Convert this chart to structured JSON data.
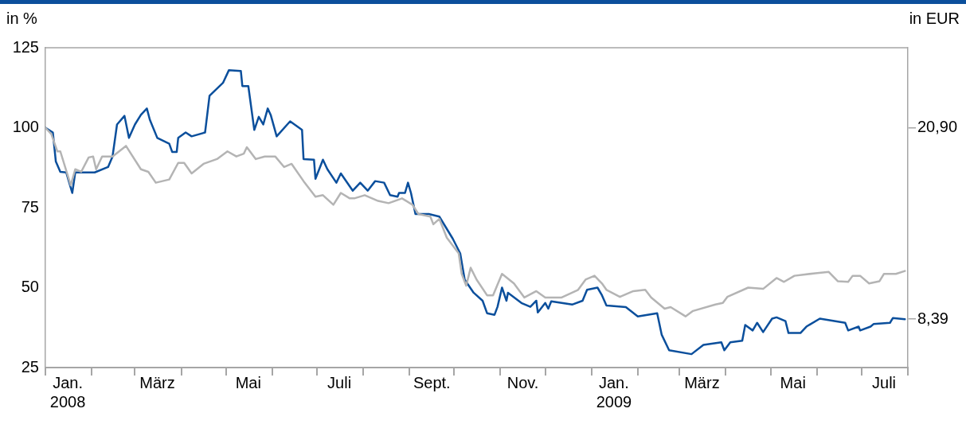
{
  "chart_data": {
    "type": "line",
    "ylabel": "in %",
    "y2label": "in EUR",
    "xlim": [
      "2008-01-01",
      "2009-08-01"
    ],
    "xticks": [
      {
        "value": "2008-01-01",
        "label": null
      },
      {
        "value": "2008-01-16",
        "label": "Jan.\n2008"
      },
      {
        "value": "2008-02-01",
        "label": null
      },
      {
        "value": "2008-03-01",
        "label": null
      },
      {
        "value": "2008-03-16",
        "label": "März"
      },
      {
        "value": "2008-04-01",
        "label": null
      },
      {
        "value": "2008-05-01",
        "label": null
      },
      {
        "value": "2008-05-16",
        "label": "Mai"
      },
      {
        "value": "2008-06-01",
        "label": null
      },
      {
        "value": "2008-07-01",
        "label": null
      },
      {
        "value": "2008-07-16",
        "label": "Juli"
      },
      {
        "value": "2008-08-01",
        "label": null
      },
      {
        "value": "2008-09-01",
        "label": null
      },
      {
        "value": "2008-09-16",
        "label": "Sept."
      },
      {
        "value": "2008-10-01",
        "label": null
      },
      {
        "value": "2008-11-01",
        "label": null
      },
      {
        "value": "2008-11-16",
        "label": "Nov."
      },
      {
        "value": "2008-12-01",
        "label": null
      },
      {
        "value": "2009-01-01",
        "label": null
      },
      {
        "value": "2009-01-16",
        "label": "Jan.\n2009"
      },
      {
        "value": "2009-02-01",
        "label": null
      },
      {
        "value": "2009-03-01",
        "label": null
      },
      {
        "value": "2009-03-16",
        "label": "März"
      },
      {
        "value": "2009-04-01",
        "label": null
      },
      {
        "value": "2009-05-01",
        "label": null
      },
      {
        "value": "2009-05-16",
        "label": "Mai"
      },
      {
        "value": "2009-06-01",
        "label": null
      },
      {
        "value": "2009-07-01",
        "label": null
      },
      {
        "value": "2009-07-16",
        "label": "Juli"
      },
      {
        "value": "2009-08-01",
        "label": null
      }
    ],
    "ylim": [
      25,
      125
    ],
    "yticks": [
      25,
      50,
      75,
      100,
      125
    ],
    "y2lim": [
      5.225,
      26.125
    ],
    "y2ticks": [
      {
        "value": 20.9,
        "label": "20,90"
      },
      {
        "value": 8.39,
        "label": "8,39"
      }
    ],
    "grid": false,
    "legend": false,
    "marker": "none",
    "line_style": "solid",
    "series": [
      {
        "color": "#b4b4b4",
        "x": [
          "2008-01-01",
          "2008-01-05",
          "2008-01-09",
          "2008-01-11",
          "2008-01-18",
          "2008-01-21",
          "2008-01-25",
          "2008-01-30",
          "2008-02-02",
          "2008-02-04",
          "2008-02-08",
          "2008-02-15",
          "2008-02-24",
          "2008-03-05",
          "2008-03-10",
          "2008-03-15",
          "2008-03-24",
          "2008-03-30",
          "2008-04-03",
          "2008-04-08",
          "2008-04-16",
          "2008-04-25",
          "2008-05-02",
          "2008-05-08",
          "2008-05-13",
          "2008-05-15",
          "2008-05-21",
          "2008-05-27",
          "2008-06-03",
          "2008-06-09",
          "2008-06-14",
          "2008-06-22",
          "2008-06-30",
          "2008-07-05",
          "2008-07-12",
          "2008-07-17",
          "2008-07-23",
          "2008-07-26",
          "2008-08-02",
          "2008-08-11",
          "2008-08-18",
          "2008-08-27",
          "2008-09-03",
          "2008-09-07",
          "2008-09-15",
          "2008-09-17",
          "2008-09-21",
          "2008-09-26",
          "2008-10-04",
          "2008-10-06",
          "2008-10-09",
          "2008-10-12",
          "2008-10-16",
          "2008-10-23",
          "2008-10-27",
          "2008-11-02",
          "2008-11-10",
          "2008-11-17",
          "2008-11-25",
          "2008-12-01",
          "2008-12-12",
          "2008-12-23",
          "2008-12-28",
          "2009-01-03",
          "2009-01-08",
          "2009-01-11",
          "2009-01-20",
          "2009-01-29",
          "2009-02-06",
          "2009-02-10",
          "2009-02-19",
          "2009-02-23",
          "2009-03-05",
          "2009-03-10",
          "2009-03-25",
          "2009-03-30",
          "2009-04-02",
          "2009-04-16",
          "2009-04-26",
          "2009-05-05",
          "2009-05-10",
          "2009-05-17",
          "2009-05-31",
          "2009-06-09",
          "2009-06-15",
          "2009-06-22",
          "2009-06-25",
          "2009-06-30",
          "2009-07-06",
          "2009-07-13",
          "2009-07-16",
          "2009-07-24",
          "2009-07-30"
        ],
        "values": [
          100,
          98,
          92.6,
          92.6,
          82,
          87,
          86.2,
          90.7,
          91,
          87,
          91,
          91,
          94.3,
          87,
          86.2,
          82.8,
          83.8,
          89,
          89,
          85.7,
          88.7,
          90.2,
          92.6,
          91,
          91.9,
          93.9,
          90.2,
          91,
          91,
          87.7,
          88.7,
          83.3,
          78.4,
          78.9,
          75.9,
          79.6,
          77.9,
          77.9,
          78.9,
          77.1,
          76.4,
          77.9,
          75.9,
          73,
          72.2,
          69.8,
          71.5,
          65.6,
          60.7,
          54.3,
          50.6,
          56.2,
          52.5,
          47.6,
          47.6,
          54.3,
          51.3,
          46.9,
          48.9,
          46.9,
          46.9,
          49.3,
          52.5,
          53.7,
          51.3,
          49.3,
          47.1,
          48.9,
          49.3,
          46.9,
          43.4,
          43.9,
          41,
          42.7,
          44.7,
          45.2,
          47.1,
          50,
          49.6,
          53,
          51.8,
          53.7,
          54.5,
          54.9,
          52,
          51.8,
          53.7,
          53.7,
          51.3,
          52,
          54.3,
          54.3,
          55.2
        ]
      },
      {
        "color": "#0b4f9c",
        "x": [
          "2008-01-01",
          "2008-01-06",
          "2008-01-08",
          "2008-01-11",
          "2008-01-15",
          "2008-01-19",
          "2008-01-21",
          "2008-02-03",
          "2008-02-12",
          "2008-02-15",
          "2008-02-18",
          "2008-02-23",
          "2008-02-26",
          "2008-03-01",
          "2008-03-05",
          "2008-03-09",
          "2008-03-11",
          "2008-03-16",
          "2008-03-24",
          "2008-03-26",
          "2008-03-29",
          "2008-03-30",
          "2008-04-04",
          "2008-04-08",
          "2008-04-17",
          "2008-04-20",
          "2008-04-29",
          "2008-05-03",
          "2008-05-11",
          "2008-05-12",
          "2008-05-16",
          "2008-05-20",
          "2008-05-23",
          "2008-05-26",
          "2008-05-29",
          "2008-05-31",
          "2008-06-04",
          "2008-06-13",
          "2008-06-21",
          "2008-06-22",
          "2008-06-29",
          "2008-06-30",
          "2008-07-05",
          "2008-07-08",
          "2008-07-14",
          "2008-07-17",
          "2008-07-25",
          "2008-07-30",
          "2008-08-04",
          "2008-08-09",
          "2008-08-15",
          "2008-08-19",
          "2008-08-24",
          "2008-08-25",
          "2008-08-29",
          "2008-08-31",
          "2008-09-02",
          "2008-09-05",
          "2008-09-14",
          "2008-09-21",
          "2008-09-30",
          "2008-10-05",
          "2008-10-08",
          "2008-10-14",
          "2008-10-20",
          "2008-10-23",
          "2008-10-28",
          "2008-10-30",
          "2008-11-02",
          "2008-11-05",
          "2008-11-06",
          "2008-11-15",
          "2008-11-21",
          "2008-11-25",
          "2008-11-26",
          "2008-12-01",
          "2008-12-03",
          "2008-12-05",
          "2008-12-19",
          "2008-12-26",
          "2008-12-29",
          "2009-01-05",
          "2009-01-08",
          "2009-01-11",
          "2009-01-24",
          "2009-02-01",
          "2009-02-14",
          "2009-02-17",
          "2009-02-22",
          "2009-03-09",
          "2009-03-17",
          "2009-03-29",
          "2009-03-31",
          "2009-04-04",
          "2009-04-12",
          "2009-04-14",
          "2009-04-19",
          "2009-04-22",
          "2009-04-26",
          "2009-05-02",
          "2009-05-05",
          "2009-05-11",
          "2009-05-13",
          "2009-05-21",
          "2009-05-25",
          "2009-06-03",
          "2009-06-20",
          "2009-06-22",
          "2009-06-29",
          "2009-06-30",
          "2009-07-07",
          "2009-07-09",
          "2009-07-20",
          "2009-07-22",
          "2009-07-30"
        ],
        "values": [
          100,
          98.5,
          89.4,
          86.2,
          86,
          79.6,
          86,
          86,
          87.7,
          91,
          101,
          103.7,
          96.8,
          101,
          104,
          106,
          102.5,
          96.8,
          95,
          92.4,
          92.4,
          96.8,
          98.5,
          97.3,
          98.5,
          110,
          114,
          118,
          117.7,
          113,
          113,
          99.3,
          103.4,
          101,
          106,
          104,
          97.3,
          102,
          99.3,
          90.2,
          90,
          84,
          90,
          87,
          82.8,
          85.7,
          80.3,
          82.8,
          80.3,
          83.3,
          82.8,
          78.9,
          78.4,
          79.6,
          79.6,
          82.8,
          79.6,
          73,
          73,
          72.2,
          65.3,
          60.7,
          52.5,
          48.4,
          45.9,
          42,
          41.5,
          44,
          50,
          45.9,
          48.4,
          45.2,
          44,
          45.9,
          42.2,
          45.2,
          43.4,
          45.7,
          44.7,
          45.9,
          49.3,
          50,
          47.6,
          44.4,
          43.9,
          41,
          42,
          35.3,
          30.4,
          29.2,
          32.1,
          32.9,
          30.4,
          32.9,
          33.4,
          38.3,
          36.6,
          39,
          36.1,
          40.3,
          40.7,
          39.5,
          35.8,
          35.8,
          37.8,
          40.3,
          39,
          36.6,
          37.8,
          36.6,
          37.8,
          38.6,
          39,
          40.5,
          40.1
        ]
      }
    ]
  }
}
